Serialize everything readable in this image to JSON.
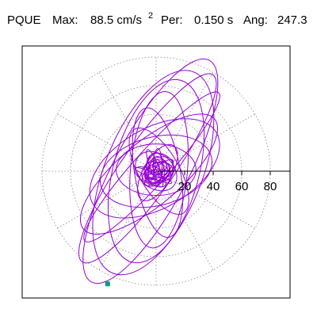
{
  "header": {
    "station": "PQUE",
    "max_label": "Max:",
    "max_value": "88.5 cm/s",
    "max_exponent": "2",
    "period_label": "Per:",
    "period_value": "0.150 s",
    "angle_label": "Ang:",
    "angle_value": "247.3"
  },
  "chart_data": {
    "type": "scatter",
    "description_free": true,
    "max_acceleration": 88.5,
    "period": 0.15,
    "angle_deg": 247.3,
    "radial_ticks": [
      "20",
      "40",
      "60",
      "80"
    ],
    "radial_tick_values": [
      20,
      40,
      60,
      80
    ],
    "rlim": [
      0,
      100
    ],
    "grid": true,
    "trace_color": "#9400d3",
    "marker_color": "#00a07a",
    "peak_marker": {
      "x": -34,
      "y": -79
    },
    "orbit_traces": [
      {
        "semi_major": 88,
        "semi_minor": 26,
        "rotation_deg": 62,
        "cx": -4,
        "cy": 0
      },
      {
        "semi_major": 80,
        "semi_minor": 18,
        "rotation_deg": 55,
        "cx": -6,
        "cy": 2
      },
      {
        "semi_major": 76,
        "semi_minor": 34,
        "rotation_deg": 68,
        "cx": -2,
        "cy": -1
      },
      {
        "semi_major": 70,
        "semi_minor": 12,
        "rotation_deg": 48,
        "cx": -3,
        "cy": 3
      },
      {
        "semi_major": 66,
        "semi_minor": 30,
        "rotation_deg": 75,
        "cx": 0,
        "cy": 0
      },
      {
        "semi_major": 60,
        "semi_minor": 22,
        "rotation_deg": 40,
        "cx": -5,
        "cy": -2
      },
      {
        "semi_major": 55,
        "semi_minor": 20,
        "rotation_deg": 85,
        "cx": 2,
        "cy": 1
      },
      {
        "semi_major": 50,
        "semi_minor": 28,
        "rotation_deg": 30,
        "cx": -1,
        "cy": 2
      },
      {
        "semi_major": 46,
        "semi_minor": 16,
        "rotation_deg": 100,
        "cx": 1,
        "cy": -1
      },
      {
        "semi_major": 40,
        "semi_minor": 24,
        "rotation_deg": 15,
        "cx": 0,
        "cy": 0
      },
      {
        "semi_major": 34,
        "semi_minor": 14,
        "rotation_deg": 120,
        "cx": 2,
        "cy": 0
      },
      {
        "semi_major": 28,
        "semi_minor": 18,
        "rotation_deg": 0,
        "cx": 0,
        "cy": 1
      },
      {
        "semi_major": 22,
        "semi_minor": 10,
        "rotation_deg": 60,
        "cx": 1,
        "cy": -1
      },
      {
        "semi_major": 16,
        "semi_minor": 12,
        "rotation_deg": 140,
        "cx": 0,
        "cy": 0
      },
      {
        "semi_major": 12,
        "semi_minor": 8,
        "rotation_deg": 30,
        "cx": 1,
        "cy": 1
      },
      {
        "semi_major": 9,
        "semi_minor": 6,
        "rotation_deg": 90,
        "cx": 0,
        "cy": -1
      }
    ]
  }
}
